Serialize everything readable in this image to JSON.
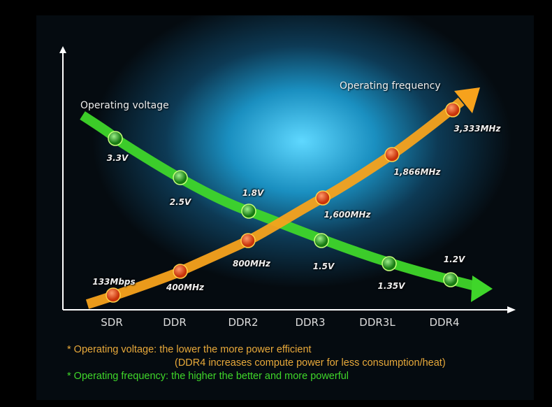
{
  "chart_data": {
    "type": "line",
    "categories": [
      "SDR",
      "DDR",
      "DDR2",
      "DDR3",
      "DDR3L",
      "DDR4"
    ],
    "series": [
      {
        "name": "Operating voltage",
        "values": [
          3.3,
          2.5,
          1.8,
          1.5,
          1.35,
          1.2
        ],
        "labels": [
          "3.3V",
          "2.5V",
          "1.8V",
          "1.5V",
          "1.35V",
          "1.2V"
        ],
        "color": "#3fd62a"
      },
      {
        "name": "Operating frequency",
        "values": [
          133,
          400,
          800,
          1600,
          1866,
          3333
        ],
        "labels": [
          "133Mbps",
          "400MHz",
          "800MHz",
          "1,600MHz",
          "1,866MHz",
          "3,333MHz"
        ],
        "color": "#f7a21c"
      }
    ],
    "grid": false
  },
  "notes": {
    "voltage": "* Operating voltage: the lower the more power efficient",
    "voltage_sub": "(DDR4 increases compute power for less consumption/heat)",
    "frequency": "* Operating frequency: the higher the better and more powerful",
    "voltage_color": "#e8a93a",
    "frequency_color": "#3fd62a"
  }
}
